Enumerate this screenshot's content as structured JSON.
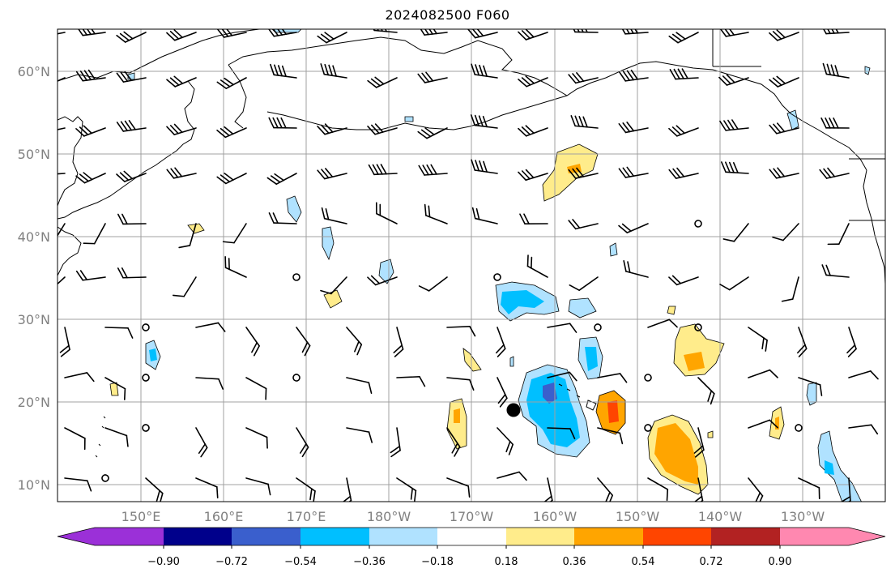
{
  "title": "2024082500 F060",
  "lat_labels": [
    "60°N",
    "50°N",
    "40°N",
    "30°N",
    "20°N",
    "10°N"
  ],
  "lon_labels": [
    "150°E",
    "160°E",
    "170°E",
    "180°W",
    "170°W",
    "160°W",
    "150°W",
    "140°W",
    "130°W"
  ],
  "colorbar": {
    "tick_labels": [
      "−0.90",
      "−0.72",
      "−0.54",
      "−0.36",
      "−0.18",
      "0.18",
      "0.36",
      "0.54",
      "0.72",
      "0.90"
    ],
    "colors": [
      "#9b30d8",
      "#00008b",
      "#3a5fcd",
      "#00bfff",
      "#b0e2ff",
      "#ffffff",
      "#ffec8b",
      "#ffa500",
      "#ff4500",
      "#b22222",
      "#ff88b0"
    ]
  },
  "colors": {
    "neg_light": "#b0e2ff",
    "neg_mid": "#00bfff",
    "neg_dark": "#3a5fcd",
    "neg_extreme": "#00008b",
    "pos_light": "#ffec8b",
    "pos_mid": "#ffa500",
    "pos_dark": "#ff4500",
    "gridline": "#a0a0a0",
    "coastline": "#000000"
  },
  "marker": {
    "name": "storm-center-marker",
    "lon": -165,
    "lat": 19
  }
}
